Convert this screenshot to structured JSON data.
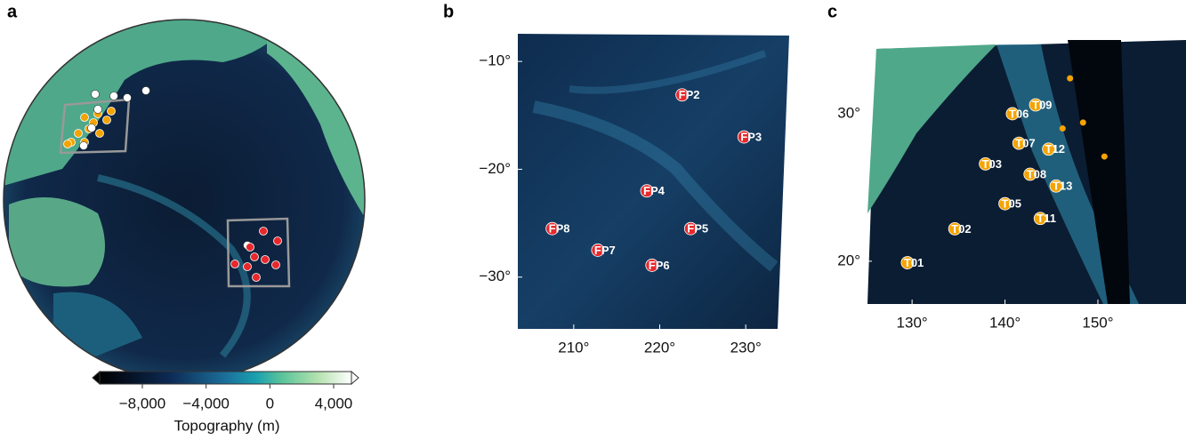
{
  "panel_a": {
    "letter": "a",
    "colorbar": {
      "lim": [
        -8000,
        4000
      ],
      "ticks": [
        {
          "value": -8000,
          "label": "−8,000"
        },
        {
          "value": -4000,
          "label": "−4,000"
        },
        {
          "value": 0,
          "label": "0"
        },
        {
          "value": 4000,
          "label": "4,000"
        }
      ],
      "label": "Topography (m)"
    }
  },
  "panel_b": {
    "letter": "b",
    "xlim": [
      203.5,
      233.5
    ],
    "ylim": [
      -34.8,
      -7.6
    ],
    "xticks": [
      {
        "value": 210,
        "label": "210°"
      },
      {
        "value": 220,
        "label": "220°"
      },
      {
        "value": 230,
        "label": "230°"
      }
    ],
    "yticks": [
      {
        "value": -10,
        "label": "−10°"
      },
      {
        "value": -20,
        "label": "−20°"
      },
      {
        "value": -30,
        "label": "−30°"
      }
    ],
    "stations": [
      {
        "name": "FP2",
        "lon": 222.6,
        "lat": -13.1
      },
      {
        "name": "FP3",
        "lon": 229.8,
        "lat": -17.0
      },
      {
        "name": "FP4",
        "lon": 218.5,
        "lat": -22.0
      },
      {
        "name": "FP5",
        "lon": 223.6,
        "lat": -25.5
      },
      {
        "name": "FP6",
        "lon": 219.1,
        "lat": -28.9
      },
      {
        "name": "FP7",
        "lon": 212.8,
        "lat": -27.5
      },
      {
        "name": "FP8",
        "lon": 207.5,
        "lat": -25.5
      }
    ]
  },
  "panel_c": {
    "letter": "c",
    "xlim": [
      125.2,
      152.3
    ],
    "ylim": [
      17.1,
      35.3
    ],
    "xticks": [
      {
        "value": 130,
        "label": "130°"
      },
      {
        "value": 140,
        "label": "140°"
      },
      {
        "value": 150,
        "label": "150°"
      }
    ],
    "yticks": [
      {
        "value": 20,
        "label": "20°"
      },
      {
        "value": 30,
        "label": "30°"
      }
    ],
    "stations": [
      {
        "name": "T01",
        "lon": 129.5,
        "lat": 19.9
      },
      {
        "name": "T02",
        "lon": 134.6,
        "lat": 22.2
      },
      {
        "name": "T03",
        "lon": 137.9,
        "lat": 26.6
      },
      {
        "name": "T05",
        "lon": 140.0,
        "lat": 23.9
      },
      {
        "name": "T06",
        "lon": 140.8,
        "lat": 30.0
      },
      {
        "name": "T07",
        "lon": 141.5,
        "lat": 28.0
      },
      {
        "name": "T08",
        "lon": 142.7,
        "lat": 25.9
      },
      {
        "name": "T09",
        "lon": 143.3,
        "lat": 30.6
      },
      {
        "name": "T11",
        "lon": 143.8,
        "lat": 22.9
      },
      {
        "name": "T12",
        "lon": 144.7,
        "lat": 27.6
      },
      {
        "name": "T13",
        "lon": 145.5,
        "lat": 25.1
      }
    ],
    "extra_points": [
      {
        "lon": 147.0,
        "lat": 32.4
      },
      {
        "lon": 146.2,
        "lat": 29.0
      },
      {
        "lon": 148.4,
        "lat": 29.4
      },
      {
        "lon": 150.7,
        "lat": 27.1
      }
    ]
  }
}
